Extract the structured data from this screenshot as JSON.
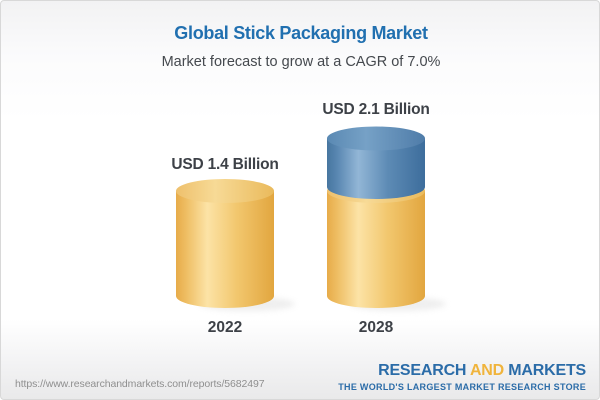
{
  "header": {
    "title": "Global Stick Packaging Market",
    "subtitle": "Market forecast to grow at a CAGR of 7.0%"
  },
  "chart_data": {
    "type": "bar",
    "variant": "3d-cylinder",
    "title": "Global Stick Packaging Market",
    "subtitle": "Market forecast to grow at a CAGR of 7.0%",
    "unit": "USD Billion",
    "cagr": "7.0%",
    "categories": [
      "2022",
      "2028"
    ],
    "totals": [
      1.4,
      2.1
    ],
    "bar_labels": [
      "USD 1.4 Billion",
      "USD 2.1 Billion"
    ],
    "series": [
      {
        "name": "base-value",
        "color_theme": "gold",
        "values": [
          1.4,
          1.4
        ]
      },
      {
        "name": "forecast-growth",
        "color_theme": "blue",
        "values": [
          0,
          0.7
        ]
      }
    ],
    "colors": {
      "gold_light": "#fce3a6",
      "gold_dark": "#e2a63f",
      "blue_light": "#92b6d6",
      "blue_dark": "#3d6d9c",
      "label_text": "#3d4147",
      "title_blue": "#2170b0"
    },
    "legend": "none",
    "grid": false
  },
  "footer": {
    "url": "https://www.researchandmarkets.com/reports/5682497",
    "logo": {
      "part1": "RESEARCH",
      "part2": "AND",
      "part3": "MARKETS",
      "tagline": "THE WORLD'S LARGEST MARKET RESEARCH STORE"
    }
  }
}
